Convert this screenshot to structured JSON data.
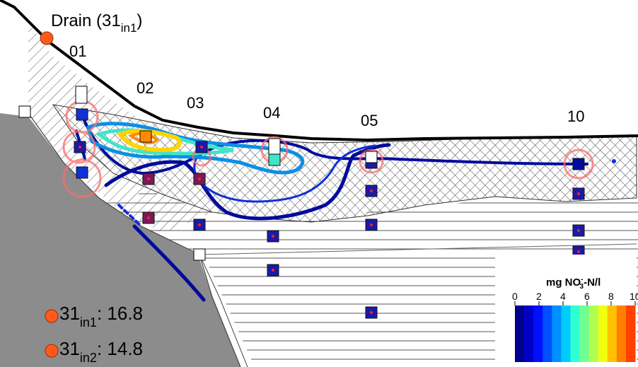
{
  "drain_label": "Drain (31",
  "drain_sub": "in1",
  "drain_close": ")",
  "profiles": [
    "01",
    "02",
    "03",
    "04",
    "05",
    "10"
  ],
  "readings": [
    {
      "name": "31",
      "sub": "in1",
      "value": ": 16.8"
    },
    {
      "name": "31",
      "sub": "in2",
      "value": ": 14.8"
    }
  ],
  "colorbar": {
    "title_main": "mg NO",
    "title_sub": "3",
    "title_sup": "-",
    "title_end": "-N/l",
    "ticks": [
      "0",
      "2",
      "4",
      "6",
      "8",
      "10"
    ],
    "colors": [
      "#00008f",
      "#0000c8",
      "#0010ff",
      "#0050ff",
      "#0090ff",
      "#00ccff",
      "#30ffd0",
      "#70ff90",
      "#b0ff50",
      "#f0ff10",
      "#ffc000",
      "#ff8000",
      "#ff4000"
    ]
  },
  "colors": {
    "ground": "#8c8c8c",
    "sample_point": "#1a1aa8",
    "sample_dot": "#ff2020",
    "highlight_ring": "#ff6b6b",
    "drain_marker": "#ff5a1a"
  }
}
